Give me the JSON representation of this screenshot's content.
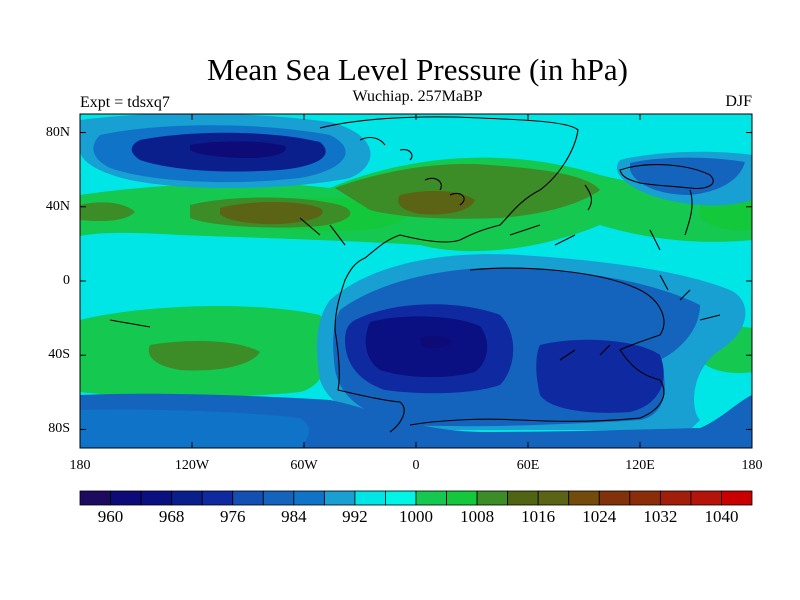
{
  "header": {
    "title": "Mean Sea Level Pressure (in hPa)",
    "subtitle": "Wuchiap. 257MaBP",
    "left_label": "Expt = tdsxq7",
    "right_label": "DJF"
  },
  "axes": {
    "y_ticks": [
      {
        "label": "80N",
        "lat": 80
      },
      {
        "label": "40N",
        "lat": 40
      },
      {
        "label": "0",
        "lat": 0
      },
      {
        "label": "40S",
        "lat": -40
      },
      {
        "label": "80S",
        "lat": -80
      }
    ],
    "x_ticks": [
      {
        "label": "180",
        "lon": -180
      },
      {
        "label": "120W",
        "lon": -120
      },
      {
        "label": "60W",
        "lon": -60
      },
      {
        "label": "0",
        "lon": 0
      },
      {
        "label": "60E",
        "lon": 60
      },
      {
        "label": "120E",
        "lon": 120
      },
      {
        "label": "180",
        "lon": 180
      }
    ],
    "lon_range": [
      -180,
      180
    ],
    "lat_range": [
      -90,
      90
    ]
  },
  "colorbar": {
    "colors": [
      "#1e0a5e",
      "#0c0b78",
      "#0a0f82",
      "#0a1e8c",
      "#0f2aa0",
      "#1450b4",
      "#1464be",
      "#0f73c8",
      "#19a0d2",
      "#00e6e6",
      "#00f5e6",
      "#14c850",
      "#14c83c",
      "#3c8c28",
      "#506414",
      "#5a6414",
      "#734b0a",
      "#82320a",
      "#8c2d0a",
      "#a01e0a",
      "#b4140a",
      "#c80000"
    ],
    "labels": [
      "960",
      "968",
      "976",
      "984",
      "992",
      "1000",
      "1008",
      "1016",
      "1024",
      "1032",
      "1040"
    ]
  },
  "regions": [
    {
      "name": "north-pacific-low",
      "value": 970,
      "lon": -128,
      "lat": 70,
      "rx": 30,
      "ry": 10
    },
    {
      "name": "north-pacific-low-core",
      "value": 964,
      "lon": -118,
      "lat": 70,
      "rx": 18,
      "ry": 4
    },
    {
      "name": "northern-subtropical-high",
      "value": 1020,
      "lon": -75,
      "lat": 35,
      "rx": 45,
      "ry": 8
    },
    {
      "name": "tethys-high",
      "value": 1018,
      "lon": 10,
      "lat": 38,
      "rx": 30,
      "ry": 10
    },
    {
      "name": "south-pacific-high",
      "value": 1020,
      "lon": -120,
      "lat": -42,
      "rx": 30,
      "ry": 8
    },
    {
      "name": "gondwana-low",
      "value": 968,
      "lon": 18,
      "lat": -32,
      "rx": 50,
      "ry": 22
    },
    {
      "name": "east-pacific-low",
      "value": 992,
      "lon": 150,
      "lat": 60,
      "rx": 35,
      "ry": 18
    }
  ]
}
